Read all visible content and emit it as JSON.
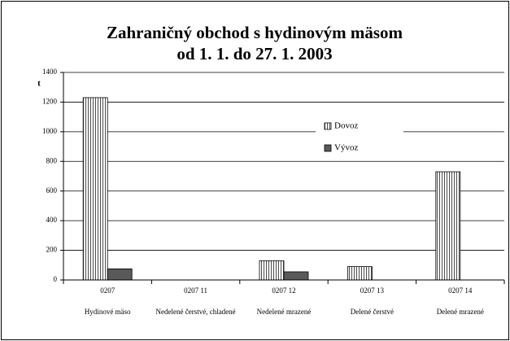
{
  "chart_data": {
    "type": "bar",
    "title": [
      "Zahraničný obchod s hydinovým mäsom",
      "od 1. 1. do 27. 1. 2003"
    ],
    "y_label": "t",
    "categories": [
      "0207",
      "0207 11",
      "0207 12",
      "0207 13",
      "0207 14"
    ],
    "category_names": [
      "Hydinové mäso",
      "Nedelené čerstvé, chladené",
      "Nedelené mrazené",
      "Delené čerstvé",
      "Delené mrazené"
    ],
    "series": [
      {
        "name": "Dovoz",
        "color": "#ffffff",
        "hatch": "vertical",
        "values": [
          1230,
          0,
          130,
          90,
          730
        ]
      },
      {
        "name": "Vývoz",
        "color": "#595959",
        "values": [
          75,
          0,
          55,
          0,
          0
        ]
      }
    ],
    "ylim": [
      0,
      1400
    ],
    "yticks": [
      0,
      200,
      400,
      600,
      800,
      1000,
      1200,
      1400
    ],
    "grid": true
  }
}
